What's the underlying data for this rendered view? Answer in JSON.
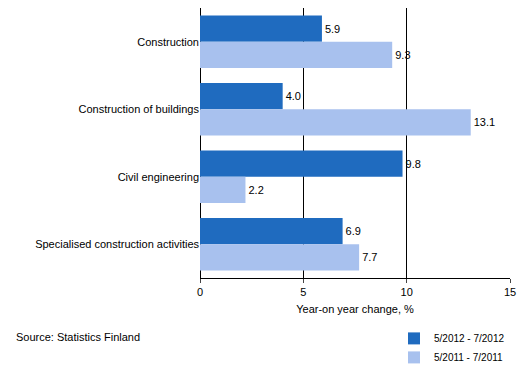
{
  "chart_data": {
    "type": "bar",
    "orientation": "horizontal",
    "categories": [
      "Construction",
      "Construction of buildings",
      "Civil engineering",
      "Specialised construction activities"
    ],
    "series": [
      {
        "name": "5/2012 - 7/2012",
        "color": "#1f6bbf",
        "values": [
          5.9,
          4.0,
          9.8,
          6.9
        ],
        "value_labels": [
          "5.9",
          "4.0",
          "9.8",
          "6.9"
        ]
      },
      {
        "name": "5/2011 - 7/2011",
        "color": "#a8c1ee",
        "values": [
          9.3,
          13.1,
          2.2,
          7.7
        ],
        "value_labels": [
          "9.3",
          "13.1",
          "2.2",
          "7.7"
        ]
      }
    ],
    "x_label": "Year-on year change, %",
    "xlim": [
      0,
      15
    ],
    "xticks": [
      0,
      5,
      10,
      15
    ],
    "grid": true,
    "data_labels": true,
    "legend": "bottom right",
    "annotations": [
      "Source: Statistics Finland"
    ]
  }
}
